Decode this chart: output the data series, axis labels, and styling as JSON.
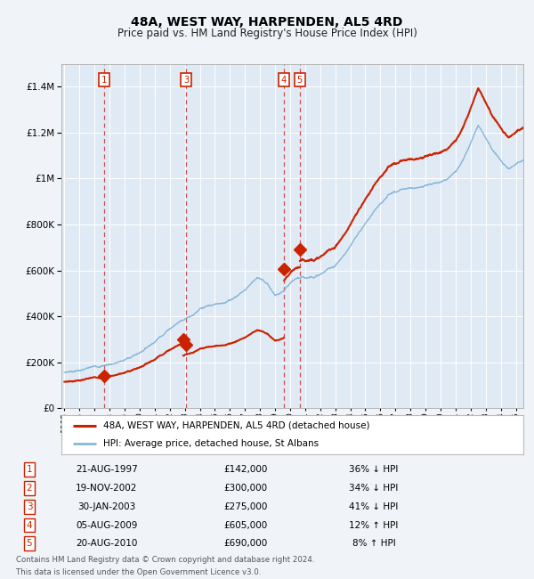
{
  "title": "48A, WEST WAY, HARPENDEN, AL5 4RD",
  "subtitle": "Price paid vs. HM Land Registry's House Price Index (HPI)",
  "footnote1": "Contains HM Land Registry data © Crown copyright and database right 2024.",
  "footnote2": "This data is licensed under the Open Government Licence v3.0.",
  "legend_line1": "48A, WEST WAY, HARPENDEN, AL5 4RD (detached house)",
  "legend_line2": "HPI: Average price, detached house, St Albans",
  "transactions": [
    {
      "id": 1,
      "date": "21-AUG-1997",
      "price": 142000,
      "pct": "36%",
      "dir": "↓",
      "year": 1997.64
    },
    {
      "id": 2,
      "date": "19-NOV-2002",
      "price": 300000,
      "pct": "34%",
      "dir": "↓",
      "year": 2002.89
    },
    {
      "id": 3,
      "date": "30-JAN-2003",
      "price": 275000,
      "pct": "41%",
      "dir": "↓",
      "year": 2003.08
    },
    {
      "id": 4,
      "date": "05-AUG-2009",
      "price": 605000,
      "pct": "12%",
      "dir": "↑",
      "year": 2009.59
    },
    {
      "id": 5,
      "date": "20-AUG-2010",
      "price": 690000,
      "pct": "8%",
      "dir": "↑",
      "year": 2010.64
    }
  ],
  "hpi_color": "#7ab0d4",
  "price_color": "#cc2200",
  "vline_color": "#cc3333",
  "bg_color": "#f0f4f8",
  "plot_bg": "#e0eaf4",
  "grid_color": "#ffffff",
  "ylim": [
    0,
    1500000
  ],
  "xlim_start": 1994.8,
  "xlim_end": 2025.5,
  "hpi_keypoints": [
    [
      1995.0,
      155000
    ],
    [
      1996.0,
      168000
    ],
    [
      1997.0,
      180000
    ],
    [
      1998.0,
      195000
    ],
    [
      1999.0,
      215000
    ],
    [
      2000.0,
      248000
    ],
    [
      2001.0,
      305000
    ],
    [
      2002.0,
      370000
    ],
    [
      2003.0,
      420000
    ],
    [
      2003.5,
      440000
    ],
    [
      2004.0,
      460000
    ],
    [
      2004.5,
      470000
    ],
    [
      2005.0,
      475000
    ],
    [
      2006.0,
      500000
    ],
    [
      2007.0,
      550000
    ],
    [
      2007.8,
      610000
    ],
    [
      2008.5,
      580000
    ],
    [
      2009.0,
      530000
    ],
    [
      2009.5,
      540000
    ],
    [
      2010.0,
      570000
    ],
    [
      2010.5,
      590000
    ],
    [
      2011.0,
      590000
    ],
    [
      2012.0,
      610000
    ],
    [
      2013.0,
      650000
    ],
    [
      2014.0,
      730000
    ],
    [
      2015.0,
      830000
    ],
    [
      2016.0,
      920000
    ],
    [
      2016.5,
      960000
    ],
    [
      2017.0,
      970000
    ],
    [
      2018.0,
      980000
    ],
    [
      2019.0,
      1000000
    ],
    [
      2020.0,
      1010000
    ],
    [
      2021.0,
      1060000
    ],
    [
      2021.5,
      1120000
    ],
    [
      2022.0,
      1200000
    ],
    [
      2022.5,
      1280000
    ],
    [
      2023.0,
      1230000
    ],
    [
      2023.5,
      1170000
    ],
    [
      2024.0,
      1130000
    ],
    [
      2024.5,
      1100000
    ],
    [
      2025.0,
      1120000
    ],
    [
      2025.5,
      1140000
    ]
  ],
  "price_segments": [
    {
      "t_start": 1995.0,
      "t_end": 2002.89,
      "ratio": 0.736
    },
    {
      "t_start": 2002.89,
      "t_end": 2009.59,
      "ratio": 0.598
    },
    {
      "t_start": 2009.59,
      "t_end": 2010.64,
      "ratio": 1.081
    },
    {
      "t_start": 2010.64,
      "t_end": 2025.5,
      "ratio": 1.131
    }
  ]
}
